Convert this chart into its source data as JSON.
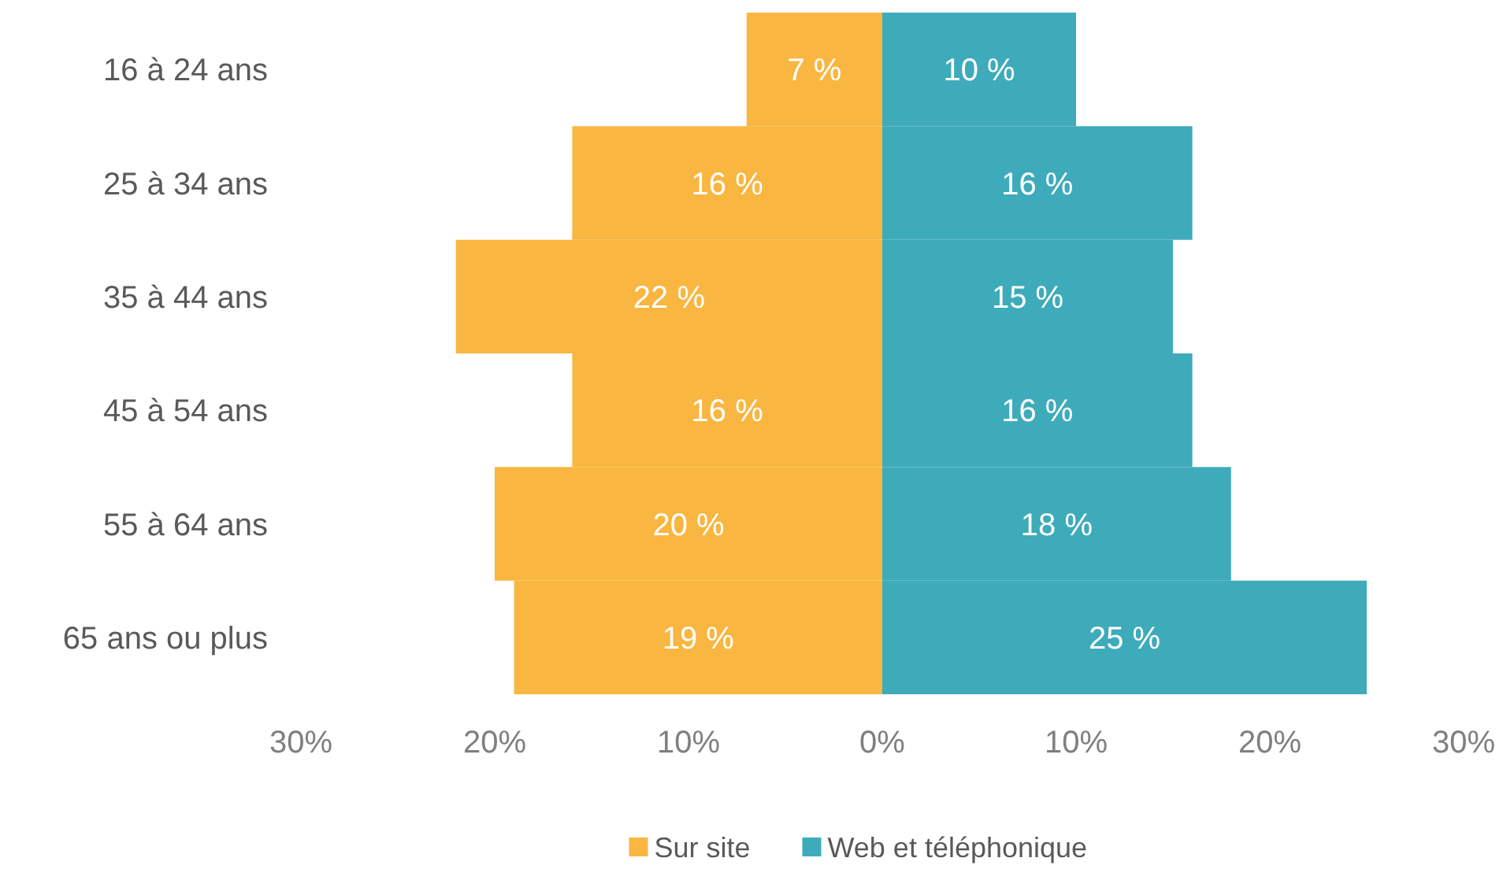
{
  "chart_data": {
    "type": "bar",
    "orientation": "horizontal",
    "categories": [
      "16 à 24 ans",
      "25 à 34 ans",
      "35 à 44 ans",
      "45 à 54 ans",
      "55 à 64 ans",
      "65 ans ou plus"
    ],
    "series": [
      {
        "name": "Sur site",
        "color": "#f9b640",
        "values": [
          7,
          16,
          22,
          16,
          20,
          19
        ],
        "base": [
          -7,
          -16,
          -22,
          -16,
          -20,
          -19
        ],
        "value_labels": [
          "7 %",
          "16 %",
          "22 %",
          "16 %",
          "20 %",
          "19 %"
        ]
      },
      {
        "name": "Web et téléphonique",
        "color": "#3eabbb",
        "values": [
          10,
          16,
          15,
          16,
          18,
          25
        ],
        "value_labels": [
          "10 %",
          "16 %",
          "15 %",
          "16 %",
          "18 %",
          "25 %"
        ]
      }
    ],
    "xlim": [
      -30,
      30
    ],
    "xticks": [
      {
        "value": -30,
        "label": "30%"
      },
      {
        "value": -20,
        "label": "20%"
      },
      {
        "value": -10,
        "label": "10%"
      },
      {
        "value": 0,
        "label": "0%"
      },
      {
        "value": 10,
        "label": "10%"
      },
      {
        "value": 20,
        "label": "20%"
      },
      {
        "value": 30,
        "label": "30%"
      }
    ],
    "legend": "bottom"
  }
}
